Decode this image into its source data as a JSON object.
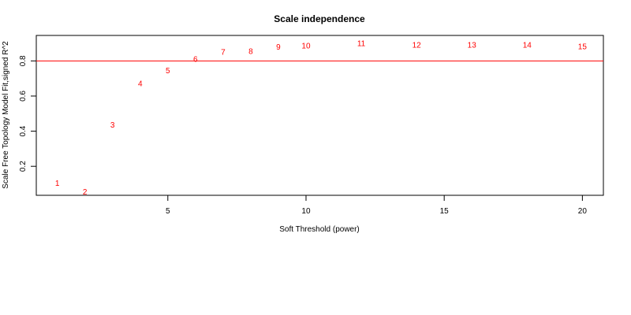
{
  "chart_data": {
    "type": "scatter",
    "title": "Scale independence",
    "xlabel": "Soft Threshold (power)",
    "ylabel": "Scale Free Topology Model Fit,signed R^2",
    "xlim": [
      0.24,
      20.76
    ],
    "ylim": [
      0.035,
      0.945
    ],
    "x_ticks": [
      5,
      10,
      15,
      20
    ],
    "y_ticks": [
      0.2,
      0.4,
      0.6,
      0.8
    ],
    "grid": false,
    "reference_line": {
      "y": 0.8,
      "color": "#ff0000"
    },
    "point_color": "#ff0000",
    "points": [
      {
        "label": "1",
        "x": 1,
        "y": 0.1
      },
      {
        "label": "2",
        "x": 2,
        "y": 0.05
      },
      {
        "label": "3",
        "x": 3,
        "y": 0.432
      },
      {
        "label": "4",
        "x": 4,
        "y": 0.668
      },
      {
        "label": "5",
        "x": 5,
        "y": 0.742
      },
      {
        "label": "6",
        "x": 6,
        "y": 0.807
      },
      {
        "label": "7",
        "x": 7,
        "y": 0.846
      },
      {
        "label": "8",
        "x": 8,
        "y": 0.85
      },
      {
        "label": "9",
        "x": 9,
        "y": 0.875
      },
      {
        "label": "10",
        "x": 10,
        "y": 0.882
      },
      {
        "label": "11",
        "x": 12,
        "y": 0.896
      },
      {
        "label": "12",
        "x": 14,
        "y": 0.887
      },
      {
        "label": "13",
        "x": 16,
        "y": 0.887
      },
      {
        "label": "14",
        "x": 18,
        "y": 0.887
      },
      {
        "label": "15",
        "x": 20,
        "y": 0.877
      }
    ]
  }
}
